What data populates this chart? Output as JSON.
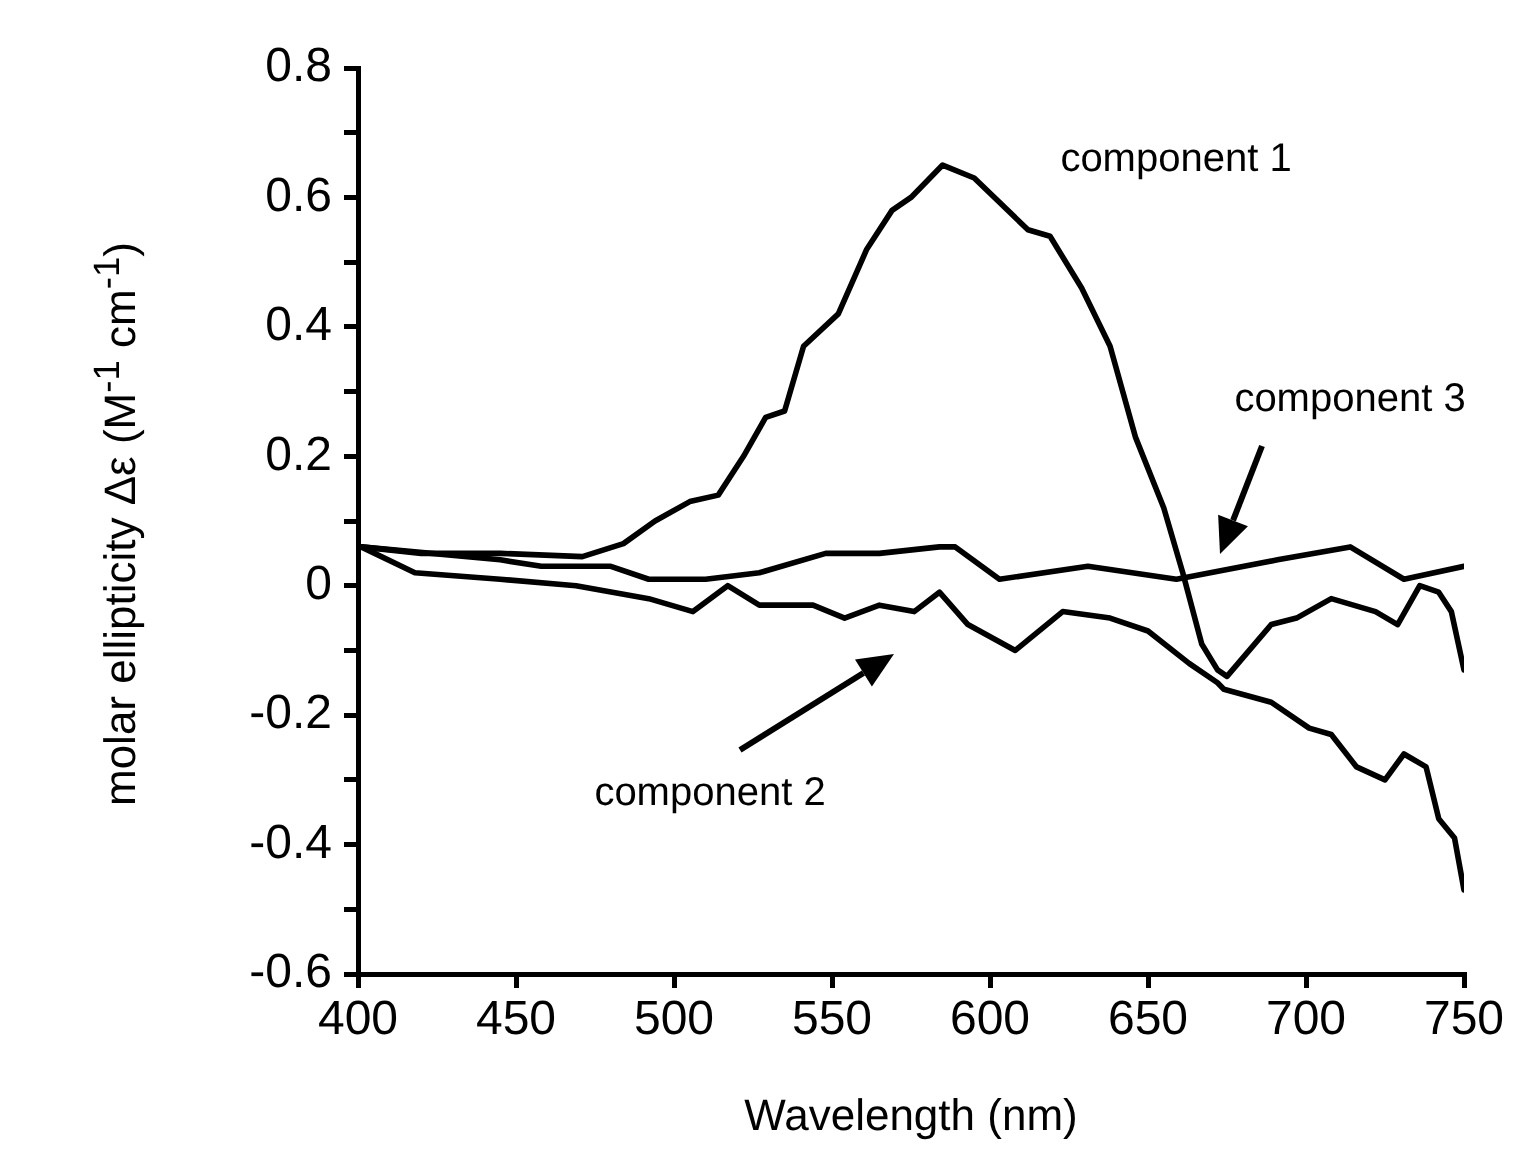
{
  "chart_data": {
    "type": "line",
    "xlabel": "Wavelength (nm)",
    "ylabel": "molar ellipticity Δε (M$^{-1}$ cm$^{-1}$)",
    "xlim": [
      400,
      750
    ],
    "xticks": [
      400,
      450,
      500,
      550,
      600,
      650,
      700,
      750
    ],
    "ylim": [
      -0.6,
      0.8
    ],
    "yticks": [
      -0.6,
      {
        "value": -0.5,
        "label": null
      },
      -0.4,
      {
        "value": -0.3,
        "label": null
      },
      -0.2,
      {
        "value": -0.1,
        "label": null
      },
      0,
      {
        "value": 0.1,
        "label": null
      },
      0.2,
      {
        "value": 0.3,
        "label": null
      },
      0.4,
      {
        "value": 0.5,
        "label": null
      },
      0.6,
      {
        "value": 0.7,
        "label": null
      },
      0.8
    ],
    "grid": false,
    "legend": false,
    "marker": "none",
    "line_style": "solid",
    "series": [
      {
        "color": "#000000",
        "x": [
          401,
          420,
          445,
          471,
          484,
          494,
          505,
          514,
          522,
          529,
          535,
          541,
          552,
          561,
          569,
          575,
          585,
          595,
          612,
          619,
          629,
          638,
          646,
          655,
          661,
          667,
          672,
          675,
          689,
          697,
          708,
          722,
          729,
          736,
          742,
          746,
          750
        ],
        "values": [
          0.06,
          0.05,
          0.05,
          0.045,
          0.065,
          0.1,
          0.13,
          0.14,
          0.2,
          0.26,
          0.27,
          0.37,
          0.42,
          0.52,
          0.58,
          0.6,
          0.65,
          0.63,
          0.55,
          0.54,
          0.46,
          0.37,
          0.23,
          0.12,
          0.02,
          -0.09,
          -0.13,
          -0.14,
          -0.06,
          -0.05,
          -0.02,
          -0.04,
          -0.06,
          0,
          -0.01,
          -0.04,
          -0.13
        ]
      },
      {
        "color": "#000000",
        "x": [
          401,
          418,
          445,
          469,
          492,
          506,
          517,
          527,
          544,
          554,
          565,
          576,
          584,
          593,
          608,
          623,
          638,
          650,
          663,
          672,
          674,
          689,
          701,
          708,
          716,
          725,
          731,
          738,
          742,
          747,
          750
        ],
        "values": [
          0.06,
          0.02,
          0.01,
          0,
          -0.02,
          -0.04,
          0,
          -0.03,
          -0.03,
          -0.05,
          -0.03,
          -0.04,
          -0.01,
          -0.06,
          -0.1,
          -0.04,
          -0.05,
          -0.07,
          -0.12,
          -0.15,
          -0.16,
          -0.18,
          -0.22,
          -0.23,
          -0.28,
          -0.3,
          -0.26,
          -0.28,
          -0.36,
          -0.39,
          -0.47
        ]
      },
      {
        "color": "#000000",
        "x": [
          401,
          445,
          458,
          480,
          492,
          510,
          527,
          548,
          565,
          584,
          589,
          603,
          631,
          659,
          691,
          714,
          731,
          750
        ],
        "values": [
          0.06,
          0.04,
          0.03,
          0.03,
          0.01,
          0.01,
          0.02,
          0.05,
          0.05,
          0.06,
          0.06,
          0.01,
          0.03,
          0.01,
          0.04,
          0.06,
          0.01,
          0.03
        ]
      }
    ],
    "annotations": [
      "component 1",
      "component 3",
      "component 2"
    ]
  }
}
